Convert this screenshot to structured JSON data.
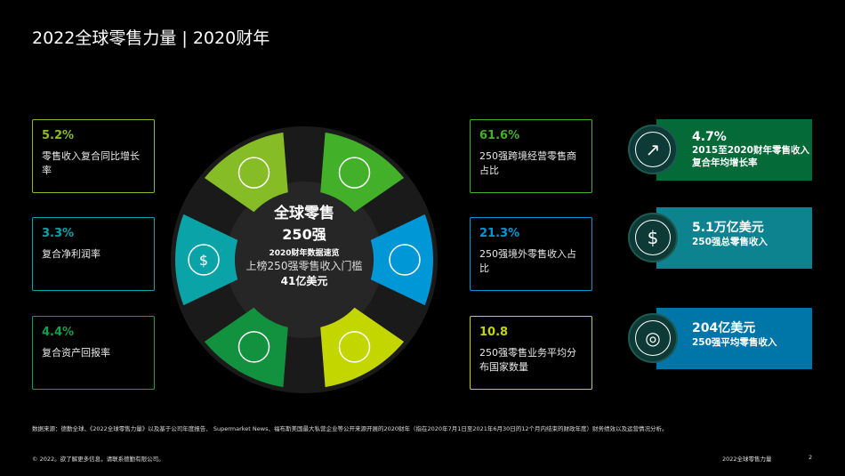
{
  "title": "2022全球零售力量 | 2020财年",
  "center": {
    "line1": "全球零售",
    "line2": "250强",
    "line3": "2020财年数据速览",
    "line4": "上榜250强零售收入门槛",
    "line5": "41亿美元"
  },
  "left_stats": [
    {
      "value": "5.2%",
      "label": "零售收入复合同比增长率",
      "color": "#86bc25"
    },
    {
      "value": "3.3%",
      "label": "复合净利润率",
      "color": "#0aa4a8"
    },
    {
      "value": "4.4%",
      "label": "复合资产回报率",
      "color": "#12a04a"
    }
  ],
  "mid_stats": [
    {
      "value": "61.6%",
      "label": "250强跨境经营零售商占比",
      "color": "#43b02a"
    },
    {
      "value": "21.3%",
      "label": "250强境外零售收入占比",
      "color": "#0097d7"
    },
    {
      "value": "10.8",
      "label": "250强零售业务平均分布国家数量",
      "color": "#c4d600"
    }
  ],
  "cards": [
    {
      "value": "4.7%",
      "label": "2015至2020财年零售收入复合年均增长率",
      "color": "#046a38",
      "icon": "growth-chart-icon"
    },
    {
      "value": "5.1万亿美元",
      "label": "250强总零售收入",
      "color": "#0d8390",
      "icon": "dollar-icon"
    },
    {
      "value": "204亿美元",
      "label": "250强平均零售收入",
      "color": "#0076a8",
      "icon": "coins-icon"
    }
  ],
  "petals": [
    {
      "icon": "growth-chart-icon",
      "color": "#86bc25"
    },
    {
      "icon": "globe-icon",
      "color": "#43b02a"
    },
    {
      "icon": "dollar-icon",
      "color": "#0aa4a8"
    },
    {
      "icon": "globe-pin-icon",
      "color": "#0097d7"
    },
    {
      "icon": "coins-icon",
      "color": "#12913f"
    },
    {
      "icon": "globe-grid-icon",
      "color": "#c4d600"
    }
  ],
  "source": "数据来源：德勤全球、《2022全球零售力量》以及基于公司年度报告、 Supermarket News、福布斯美国最大私营企业等公开来源开展的2020财年（指在2020年7月1日至2021年6月30日的12个月内结束的财政年度）财务绩效以及运营情况分析。",
  "footer": {
    "copyright": "© 2022。欲了解更多信息，请联系德勤有限公司。",
    "doc": "2022全球零售力量",
    "page": "2"
  }
}
